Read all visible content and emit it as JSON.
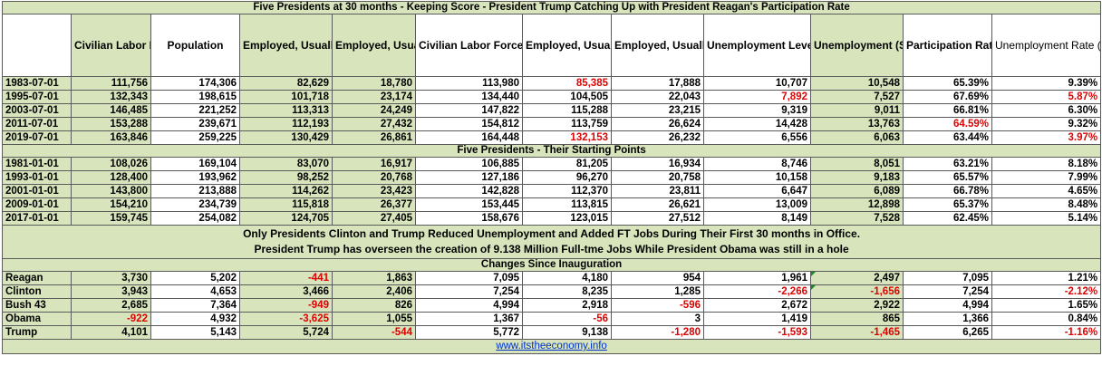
{
  "title": "Five Presidents at 30 months - Keeping Score - President Trump Catching Up with President Reagan's Participation Rate",
  "headers": [
    "",
    "Civilian Labor Force (SA)",
    "Population",
    "Employed, Usually Work Full Time (SA)",
    "Employed, Usually Work Part Time (SA)",
    "Civilian Labor Force (NSA)",
    "Employed, Usually Work Full Time (NSA)",
    "Employed, Usually Work Part Time (NSA)",
    "Unemployment Level (NSA)",
    "Unemployment (SA)",
    "Participation Rate",
    "Unemployment Rate (NSA)"
  ],
  "section1_rows": [
    {
      "label": "1983-07-01",
      "cells": [
        "111,756",
        "174,306",
        "82,629",
        "18,780",
        "113,980",
        "85,385",
        "17,888",
        "10,707",
        "10,548",
        "65.39%",
        "9.39%"
      ],
      "red": [
        5
      ]
    },
    {
      "label": "1995-07-01",
      "cells": [
        "132,343",
        "198,615",
        "101,718",
        "23,174",
        "134,440",
        "104,505",
        "22,043",
        "7,892",
        "7,527",
        "67.69%",
        "5.87%"
      ],
      "red": [
        7,
        10
      ]
    },
    {
      "label": "2003-07-01",
      "cells": [
        "146,485",
        "221,252",
        "113,313",
        "24,249",
        "147,822",
        "115,288",
        "23,215",
        "9,319",
        "9,011",
        "66.81%",
        "6.30%"
      ],
      "red": []
    },
    {
      "label": "2011-07-01",
      "cells": [
        "153,288",
        "239,671",
        "112,193",
        "27,432",
        "154,812",
        "113,759",
        "26,624",
        "14,428",
        "13,763",
        "64.59%",
        "9.32%"
      ],
      "red": [
        9
      ]
    },
    {
      "label": "2019-07-01",
      "cells": [
        "163,846",
        "259,225",
        "130,429",
        "26,861",
        "164,448",
        "132,153",
        "26,232",
        "6,556",
        "6,063",
        "63.44%",
        "3.97%"
      ],
      "red": [
        5,
        10
      ]
    }
  ],
  "section2_title": "Five Presidents - Their Starting Points",
  "section2_rows": [
    {
      "label": "1981-01-01",
      "cells": [
        "108,026",
        "169,104",
        "83,070",
        "16,917",
        "106,885",
        "81,205",
        "16,934",
        "8,746",
        "8,051",
        "63.21%",
        "8.18%"
      ],
      "red": []
    },
    {
      "label": "1993-01-01",
      "cells": [
        "128,400",
        "193,962",
        "98,252",
        "20,768",
        "127,186",
        "96,270",
        "20,758",
        "10,158",
        "9,183",
        "65.57%",
        "7.99%"
      ],
      "red": []
    },
    {
      "label": "2001-01-01",
      "cells": [
        "143,800",
        "213,888",
        "114,262",
        "23,423",
        "142,828",
        "112,370",
        "23,811",
        "6,647",
        "6,089",
        "66.78%",
        "4.65%"
      ],
      "red": []
    },
    {
      "label": "2009-01-01",
      "cells": [
        "154,210",
        "234,739",
        "115,818",
        "26,377",
        "153,445",
        "113,815",
        "26,621",
        "13,009",
        "12,898",
        "65.37%",
        "8.48%"
      ],
      "red": []
    },
    {
      "label": "2017-01-01",
      "cells": [
        "159,745",
        "254,082",
        "124,705",
        "27,405",
        "158,676",
        "123,015",
        "27,512",
        "8,149",
        "7,528",
        "62.45%",
        "5.14%"
      ],
      "red": []
    }
  ],
  "note_line1": "Only Presidents Clinton and Trump Reduced Unemployment and Added FT Jobs During Their First 30 months in Office.",
  "note_line2": "President Trump has overseen the creation of 9.138 Million Full-tme Jobs While President Obama was still in a hole",
  "section3_title": "Changes Since Inauguration",
  "section3_rows": [
    {
      "label": "Reagan",
      "cells": [
        "3,730",
        "5,202",
        "-441",
        "1,863",
        "7,095",
        "4,180",
        "954",
        "1,961",
        "2,497",
        "7,095",
        "1.21%"
      ],
      "red": [
        2
      ]
    },
    {
      "label": "Clinton",
      "cells": [
        "3,943",
        "4,653",
        "3,466",
        "2,406",
        "7,254",
        "8,235",
        "1,285",
        "-2,266",
        "-1,656",
        "7,254",
        "-2.12%"
      ],
      "red": [
        7,
        8,
        10
      ]
    },
    {
      "label": "Bush 43",
      "cells": [
        "2,685",
        "7,364",
        "-949",
        "826",
        "4,994",
        "2,918",
        "-596",
        "2,672",
        "2,922",
        "4,994",
        "1.65%"
      ],
      "red": [
        2,
        6
      ]
    },
    {
      "label": "Obama",
      "cells": [
        "-922",
        "4,932",
        "-3,625",
        "1,055",
        "1,367",
        "-56",
        "3",
        "1,419",
        "865",
        "1,366",
        "0.84%"
      ],
      "red": [
        0,
        2,
        5
      ]
    },
    {
      "label": "Trump",
      "cells": [
        "4,101",
        "5,143",
        "5,724",
        "-544",
        "5,772",
        "9,138",
        "-1,280",
        "-1,593",
        "-1,465",
        "6,265",
        "-1.16%"
      ],
      "red": [
        3,
        6,
        7,
        8,
        10
      ]
    }
  ],
  "footer_link": "www.itstheeconomy.info",
  "colors": {
    "green": "#d8e4bc",
    "negative": "#e00000",
    "link": "#0033cc"
  }
}
